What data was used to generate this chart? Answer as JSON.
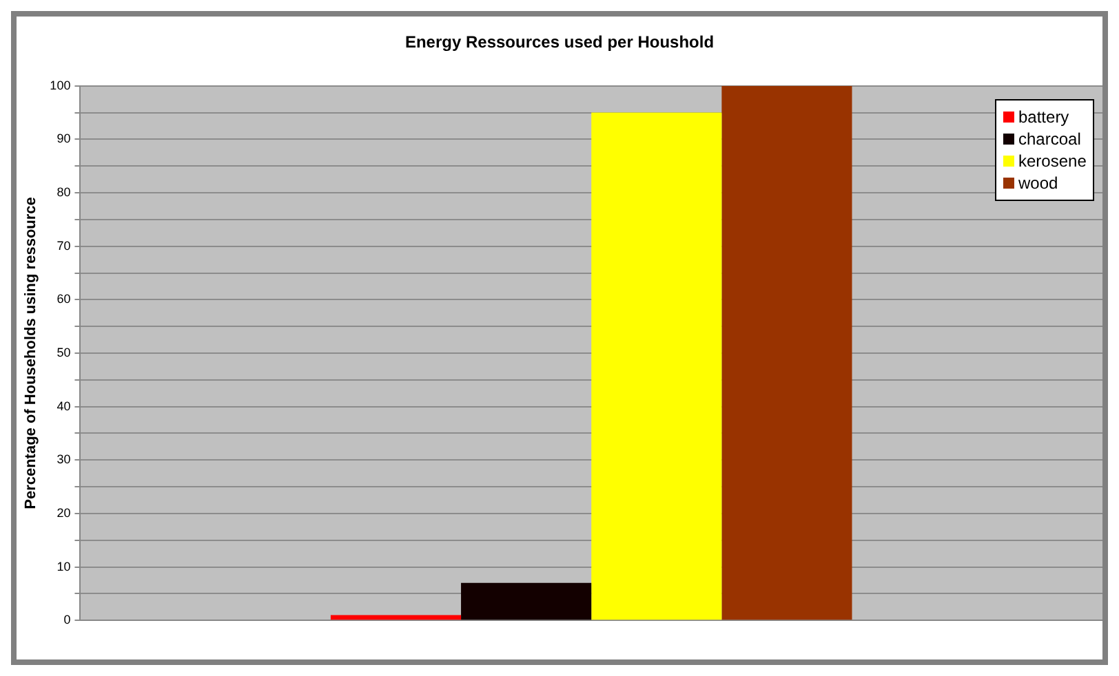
{
  "chart_data": {
    "type": "bar",
    "title": "Energy Ressources used per Houshold",
    "ylabel": "Percentage of Households using ressource",
    "categories": [
      null
    ],
    "series": [
      {
        "name": "battery",
        "color": "#ff0000",
        "values": [
          1
        ]
      },
      {
        "name": "charcoal",
        "color": "#130000",
        "values": [
          7
        ]
      },
      {
        "name": "kerosene",
        "color": "#ffff00",
        "values": [
          95
        ]
      },
      {
        "name": "wood",
        "color": "#993300",
        "values": [
          100
        ]
      }
    ],
    "ylim": [
      0,
      100
    ],
    "yticks": [
      0,
      {
        "value": 5,
        "label": null
      },
      10,
      {
        "value": 15,
        "label": null
      },
      20,
      {
        "value": 25,
        "label": null
      },
      30,
      {
        "value": 35,
        "label": null
      },
      40,
      {
        "value": 45,
        "label": null
      },
      50,
      {
        "value": 55,
        "label": null
      },
      60,
      {
        "value": 65,
        "label": null
      },
      70,
      {
        "value": 75,
        "label": null
      },
      80,
      {
        "value": 85,
        "label": null
      },
      90,
      {
        "value": 95,
        "label": null
      },
      100
    ],
    "grid": "y",
    "legend": "top right"
  }
}
